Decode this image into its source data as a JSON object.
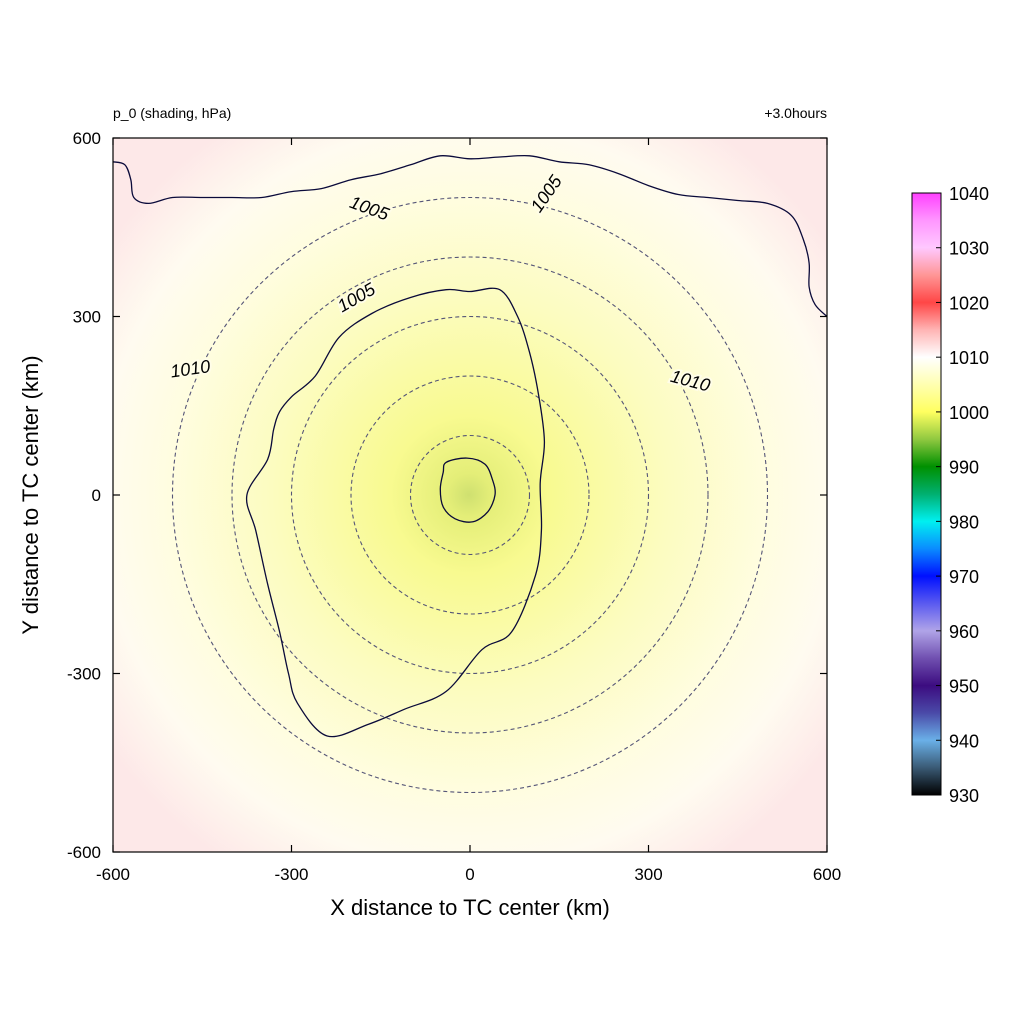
{
  "chart_data": {
    "type": "heatmap",
    "title_left": "p_0 (shading, hPa)",
    "title_right": "+3.0hours",
    "xlabel": "X distance to TC center (km)",
    "ylabel": "Y distance to TC center (km)",
    "xlim": [
      -600,
      600
    ],
    "ylim": [
      -600,
      600
    ],
    "x_ticks": [
      -600,
      -300,
      0,
      300,
      600
    ],
    "y_ticks": [
      -600,
      -300,
      0,
      300,
      600
    ],
    "x_tick_labels": [
      "-600",
      "-300",
      "0",
      "300",
      "600"
    ],
    "y_tick_labels": [
      "-600",
      "-300",
      "0",
      "300",
      "600"
    ],
    "center_pressure": 1001,
    "range_rings_km": [
      100,
      200,
      300,
      400,
      500
    ],
    "colorbar": {
      "min": 930,
      "max": 1040,
      "ticks": [
        930,
        940,
        950,
        960,
        970,
        980,
        990,
        1000,
        1010,
        1020,
        1030,
        1040
      ],
      "tick_labels": [
        "930",
        "940",
        "950",
        "960",
        "970",
        "980",
        "990",
        "1000",
        "1010",
        "1020",
        "1030",
        "1040"
      ],
      "stops": [
        {
          "value": 930,
          "color": "#000000"
        },
        {
          "value": 935,
          "color": "#3a5a75"
        },
        {
          "value": 940,
          "color": "#6ab0e8"
        },
        {
          "value": 945,
          "color": "#4a4aa8"
        },
        {
          "value": 950,
          "color": "#3c0c80"
        },
        {
          "value": 955,
          "color": "#7050b0"
        },
        {
          "value": 960,
          "color": "#b0a4e8"
        },
        {
          "value": 965,
          "color": "#5a5af0"
        },
        {
          "value": 970,
          "color": "#0010ff"
        },
        {
          "value": 975,
          "color": "#0a8cff"
        },
        {
          "value": 980,
          "color": "#00f0f0"
        },
        {
          "value": 985,
          "color": "#00b070"
        },
        {
          "value": 990,
          "color": "#009000"
        },
        {
          "value": 995,
          "color": "#90c840"
        },
        {
          "value": 1000,
          "color": "#ffff60"
        },
        {
          "value": 1005,
          "color": "#ffffb0"
        },
        {
          "value": 1010,
          "color": "#ffffff"
        },
        {
          "value": 1015,
          "color": "#ffb4b4"
        },
        {
          "value": 1020,
          "color": "#ff4646"
        },
        {
          "value": 1025,
          "color": "#ff9696"
        },
        {
          "value": 1030,
          "color": "#ffc8ff"
        },
        {
          "value": 1035,
          "color": "#ff96ff"
        },
        {
          "value": 1040,
          "color": "#ff40ff"
        }
      ]
    },
    "contours": [
      {
        "level": 1001,
        "label": "",
        "points": [
          [
            -40,
            55
          ],
          [
            -5,
            62
          ],
          [
            25,
            52
          ],
          [
            38,
            25
          ],
          [
            42,
            0
          ],
          [
            30,
            -28
          ],
          [
            5,
            -45
          ],
          [
            -25,
            -40
          ],
          [
            -45,
            -20
          ],
          [
            -50,
            10
          ],
          [
            -45,
            38
          ]
        ]
      },
      {
        "level": 1005,
        "label": "1005",
        "label_positions": [
          [
            -190,
            330,
            -30
          ],
          [
            -170,
            480,
            20
          ],
          [
            130,
            505,
            -55
          ]
        ],
        "points": [
          [
            -300,
            165
          ],
          [
            -260,
            200
          ],
          [
            -220,
            265
          ],
          [
            -165,
            305
          ],
          [
            -100,
            332
          ],
          [
            -40,
            345
          ],
          [
            0,
            342
          ],
          [
            50,
            345
          ],
          [
            80,
            300
          ],
          [
            100,
            240
          ],
          [
            115,
            170
          ],
          [
            125,
            90
          ],
          [
            118,
            20
          ],
          [
            120,
            -60
          ],
          [
            110,
            -135
          ],
          [
            70,
            -230
          ],
          [
            20,
            -260
          ],
          [
            -40,
            -330
          ],
          [
            -110,
            -360
          ],
          [
            -170,
            -385
          ],
          [
            -240,
            -405
          ],
          [
            -290,
            -350
          ],
          [
            -305,
            -300
          ],
          [
            -320,
            -230
          ],
          [
            -340,
            -150
          ],
          [
            -360,
            -60
          ],
          [
            -375,
            0
          ],
          [
            -340,
            60
          ],
          [
            -330,
            110
          ],
          [
            -320,
            140
          ]
        ]
      },
      {
        "level": 1010,
        "label": "1010",
        "label_positions": [
          [
            -470,
            210,
            -8
          ],
          [
            370,
            190,
            15
          ]
        ],
        "points": [
          [
            -600,
            560
          ],
          [
            -580,
            555
          ],
          [
            -570,
            530
          ],
          [
            -565,
            500
          ],
          [
            -540,
            490
          ],
          [
            -500,
            500
          ],
          [
            -450,
            500
          ],
          [
            -400,
            500
          ],
          [
            -350,
            500
          ],
          [
            -300,
            510
          ],
          [
            -250,
            515
          ],
          [
            -200,
            530
          ],
          [
            -150,
            540
          ],
          [
            -100,
            555
          ],
          [
            -50,
            570
          ],
          [
            0,
            565
          ],
          [
            50,
            568
          ],
          [
            100,
            570
          ],
          [
            150,
            560
          ],
          [
            200,
            555
          ],
          [
            250,
            540
          ],
          [
            300,
            520
          ],
          [
            350,
            505
          ],
          [
            400,
            500
          ],
          [
            450,
            495
          ],
          [
            500,
            490
          ],
          [
            540,
            470
          ],
          [
            560,
            430
          ],
          [
            570,
            390
          ],
          [
            570,
            350
          ],
          [
            580,
            320
          ],
          [
            600,
            300
          ]
        ]
      }
    ]
  }
}
